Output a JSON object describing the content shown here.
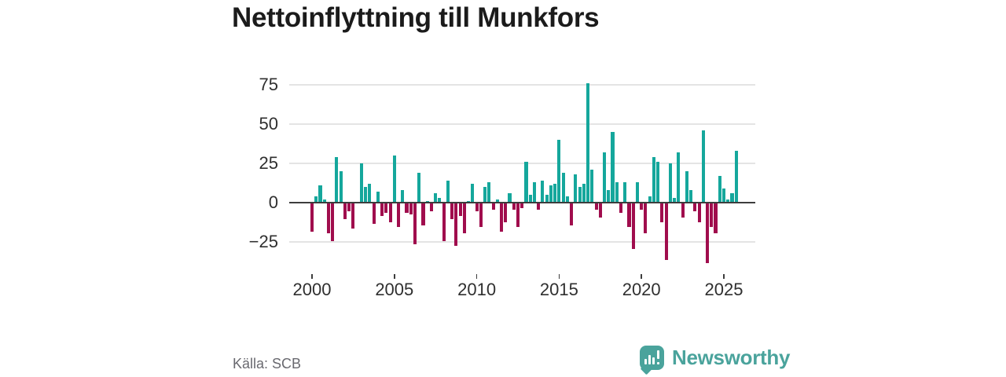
{
  "title": "Nettoinflyttning till Munkfors",
  "source": "Källa: SCB",
  "brand": {
    "name": "Newsworthy",
    "color": "#4aa39c"
  },
  "chart_data": {
    "type": "bar",
    "title": "Nettoinflyttning till Munkfors",
    "frequency": "quarterly",
    "x_range": [
      "2000 Q1",
      "2025 Q4"
    ],
    "xlabel": "",
    "ylabel": "",
    "ylim": [
      -40,
      80
    ],
    "grid": "horizontal",
    "positive_color": "#15a79c",
    "negative_color": "#a00d4d",
    "y_ticks": [
      {
        "value": 75,
        "label": "75"
      },
      {
        "value": 50,
        "label": "50"
      },
      {
        "value": 25,
        "label": "25"
      },
      {
        "value": 0,
        "label": "0"
      },
      {
        "value": -25,
        "label": "−25"
      }
    ],
    "x_ticks": [
      {
        "year": 2000,
        "label": "2000"
      },
      {
        "year": 2005,
        "label": "2005"
      },
      {
        "year": 2010,
        "label": "2010"
      },
      {
        "year": 2015,
        "label": "2015"
      },
      {
        "year": 2020,
        "label": "2020"
      },
      {
        "year": 2025,
        "label": "2025"
      }
    ],
    "series": [
      {
        "year": 2000,
        "quarters": [
          -18,
          4,
          11,
          2
        ]
      },
      {
        "year": 2001,
        "quarters": [
          -19,
          -24,
          29,
          20
        ]
      },
      {
        "year": 2002,
        "quarters": [
          -10,
          -5,
          -16,
          0
        ]
      },
      {
        "year": 2003,
        "quarters": [
          25,
          10,
          12,
          -13
        ]
      },
      {
        "year": 2004,
        "quarters": [
          7,
          -8,
          -6,
          -12
        ]
      },
      {
        "year": 2005,
        "quarters": [
          30,
          -15,
          8,
          -6
        ]
      },
      {
        "year": 2006,
        "quarters": [
          -7,
          -26,
          19,
          -14
        ]
      },
      {
        "year": 2007,
        "quarters": [
          1,
          -5,
          6,
          3
        ]
      },
      {
        "year": 2008,
        "quarters": [
          -24,
          14,
          -10,
          -27
        ]
      },
      {
        "year": 2009,
        "quarters": [
          -8,
          -19,
          1,
          12
        ]
      },
      {
        "year": 2010,
        "quarters": [
          -5,
          -15,
          10,
          13
        ]
      },
      {
        "year": 2011,
        "quarters": [
          -4,
          2,
          -18,
          -12
        ]
      },
      {
        "year": 2012,
        "quarters": [
          6,
          -4,
          -15,
          -3
        ]
      },
      {
        "year": 2013,
        "quarters": [
          26,
          5,
          13,
          -4
        ]
      },
      {
        "year": 2014,
        "quarters": [
          14,
          5,
          11,
          12
        ]
      },
      {
        "year": 2015,
        "quarters": [
          40,
          19,
          4,
          -14
        ]
      },
      {
        "year": 2016,
        "quarters": [
          18,
          10,
          12,
          76
        ]
      },
      {
        "year": 2017,
        "quarters": [
          21,
          -4,
          -9,
          32
        ]
      },
      {
        "year": 2018,
        "quarters": [
          8,
          45,
          13,
          -6
        ]
      },
      {
        "year": 2019,
        "quarters": [
          13,
          -15,
          -29,
          13
        ]
      },
      {
        "year": 2020,
        "quarters": [
          -4,
          -19,
          4,
          29
        ]
      },
      {
        "year": 2021,
        "quarters": [
          26,
          -12,
          -36,
          25
        ]
      },
      {
        "year": 2022,
        "quarters": [
          3,
          32,
          -9,
          20
        ]
      },
      {
        "year": 2023,
        "quarters": [
          8,
          -5,
          -12,
          46
        ]
      },
      {
        "year": 2024,
        "quarters": [
          -38,
          -15,
          -19,
          17
        ]
      },
      {
        "year": 2025,
        "quarters": [
          9,
          2,
          6,
          33
        ]
      }
    ]
  }
}
